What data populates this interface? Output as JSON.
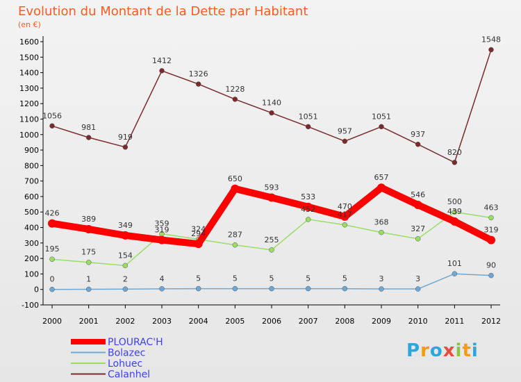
{
  "title": "Evolution du Montant de la Dette par Habitant",
  "subtitle": "(en €)",
  "logo": {
    "text": "Proxiti",
    "letters": [
      "P",
      "r",
      "o",
      "x",
      "i",
      "t",
      "i"
    ],
    "colors": [
      "#2ba6de",
      "#f39c12",
      "#2ba6de",
      "#e74c3c",
      "#8cc63f",
      "#f39c12",
      "#2ba6de"
    ]
  },
  "chart_data": {
    "type": "line",
    "title": "Evolution du Montant de la Dette par Habitant",
    "subtitle": "(en €)",
    "x": [
      "2000",
      "2001",
      "2002",
      "2003",
      "2004",
      "2005",
      "2006",
      "2007",
      "2008",
      "2009",
      "2010",
      "2011",
      "2012"
    ],
    "ylim": [
      -100,
      1600
    ],
    "yticks": [
      -100,
      0,
      100,
      200,
      300,
      400,
      500,
      600,
      700,
      800,
      900,
      1000,
      1100,
      1200,
      1300,
      1400,
      1500,
      1600
    ],
    "grid": false,
    "legend": "bottom-left",
    "series": [
      {
        "name": "PLOURAC'H",
        "color": "#ff0000",
        "values": [
          426,
          389,
          349,
          319,
          294,
          650,
          593,
          533,
          470,
          657,
          546,
          439,
          319
        ]
      },
      {
        "name": "Bolazec",
        "color": "#6fa7d4",
        "values": [
          0,
          1,
          2,
          4,
          5,
          5,
          5,
          5,
          5,
          3,
          3,
          101,
          90
        ]
      },
      {
        "name": "Lohuec",
        "color": "#99dd66",
        "values": [
          195,
          175,
          154,
          359,
          324,
          287,
          255,
          452,
          417,
          368,
          327,
          500,
          463
        ]
      },
      {
        "name": "Calanhel",
        "color": "#7a2a2a",
        "values": [
          1056,
          981,
          919,
          1412,
          1326,
          1228,
          1140,
          1051,
          957,
          1051,
          937,
          820,
          1548
        ]
      }
    ]
  }
}
